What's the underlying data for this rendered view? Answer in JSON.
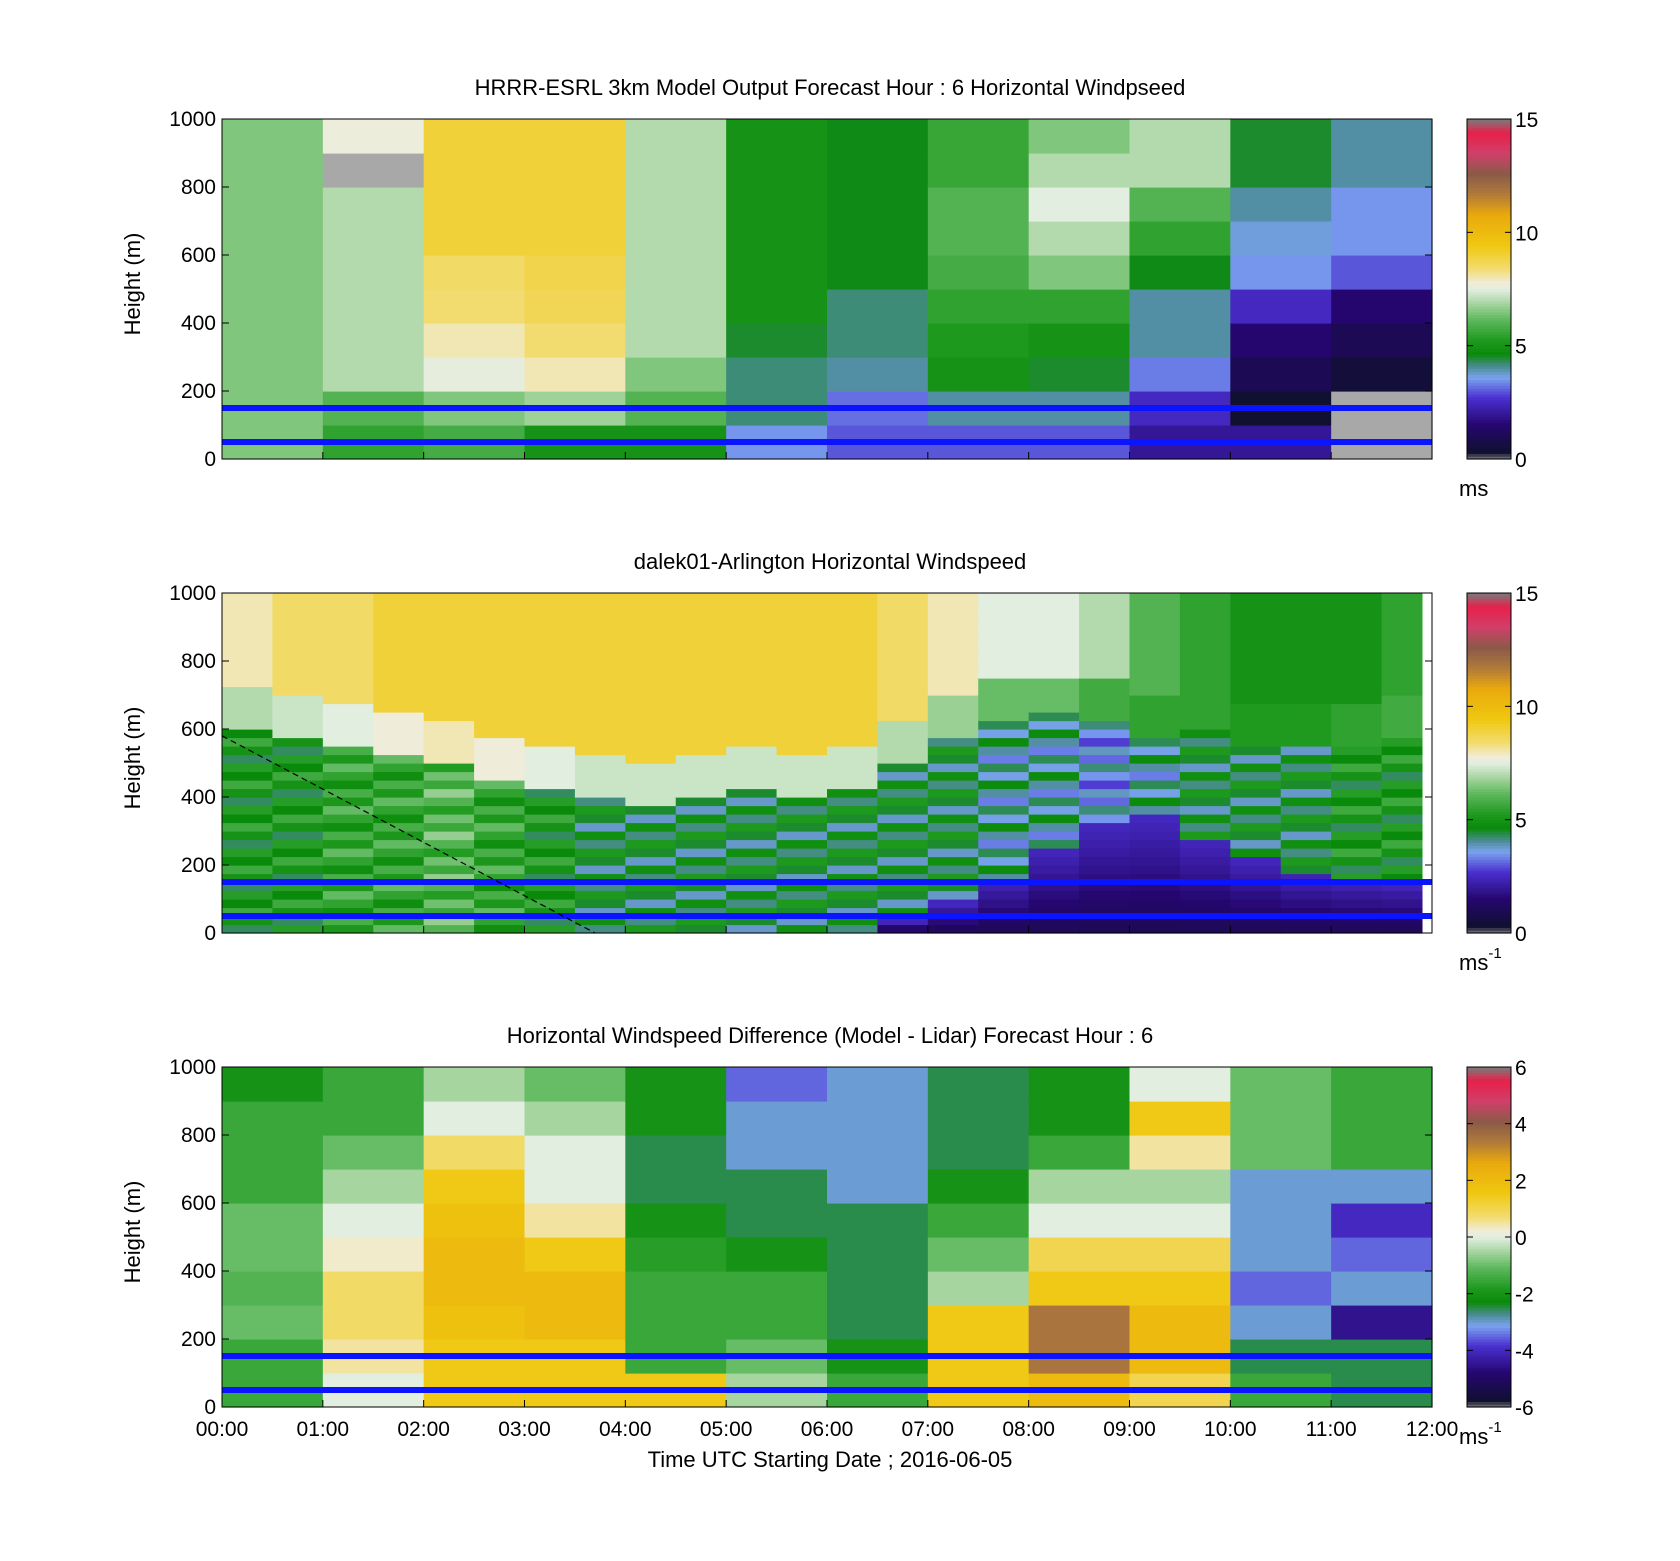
{
  "chart_data": [
    {
      "type": "heatmap",
      "title": "HRRR-ESRL 3km Model Output   Forecast Hour : 6 Horizontal Windpseed",
      "ylabel": "Height (m)",
      "xlabel": "",
      "ylim": [
        0,
        1000
      ],
      "yticks": [
        0,
        200,
        400,
        600,
        800,
        1000
      ],
      "x_tick_labels": [
        "",
        "",
        "",
        "",
        "",
        "",
        "",
        "",
        "",
        "",
        "",
        "",
        ""
      ],
      "x_hours": [
        0,
        12
      ],
      "colorbar": {
        "range": [
          0,
          15
        ],
        "ticks": [
          0,
          5,
          10,
          15
        ],
        "unit": "ms",
        "unit_sup": ""
      },
      "reference_lines_m": [
        50,
        150
      ],
      "columns_hours": [
        0,
        1,
        2,
        3,
        4,
        5,
        6,
        7,
        8,
        9,
        10,
        11
      ],
      "values": [
        [
          6.5,
          6.5,
          6.5,
          6.5,
          6.5,
          6.5,
          6.5,
          6.5,
          6.5,
          6.5
        ],
        [
          5.5,
          6,
          7,
          7,
          7,
          7,
          7,
          7,
          -1,
          7.7
        ],
        [
          5.8,
          6.5,
          7.6,
          8,
          8.4,
          8.5,
          9,
          9,
          9,
          9
        ],
        [
          5,
          6.8,
          8,
          8.4,
          8.7,
          8.8,
          9,
          9,
          9,
          9
        ],
        [
          5,
          6,
          6.5,
          7,
          7,
          7,
          7,
          7,
          7,
          7
        ],
        [
          3.5,
          4.2,
          4.2,
          4.5,
          5,
          5,
          5,
          5,
          5,
          5
        ],
        [
          3,
          3.2,
          4,
          4.2,
          4.2,
          4.6,
          4.6,
          4.6,
          4.6,
          4.6
        ],
        [
          3,
          4,
          5,
          5.2,
          5.5,
          5.8,
          6,
          6,
          5.6,
          5.6
        ],
        [
          3,
          4,
          4.5,
          5,
          5.5,
          6.5,
          7,
          7.5,
          7,
          6.5
        ],
        [
          2,
          2.5,
          3.3,
          4,
          4,
          4.6,
          5.5,
          6,
          7,
          7
        ],
        [
          2,
          0.3,
          1,
          1.5,
          2.5,
          3.5,
          3.7,
          4,
          4.5,
          4.5
        ],
        [
          -1,
          -1,
          0.5,
          1,
          1.5,
          3,
          3.5,
          3.5,
          4,
          4
        ]
      ]
    },
    {
      "type": "heatmap",
      "title": "dalek01-Arlington  Horizontal Windspeed",
      "ylabel": "Height (m)",
      "xlabel": "",
      "ylim": [
        0,
        1000
      ],
      "yticks": [
        0,
        200,
        400,
        600,
        800,
        1000
      ],
      "x_tick_labels": [
        "",
        "",
        "",
        "",
        "",
        "",
        "",
        "",
        "",
        "",
        "",
        "",
        ""
      ],
      "x_hours": [
        0,
        12
      ],
      "colorbar": {
        "range": [
          0,
          15
        ],
        "ticks": [
          0,
          5,
          10,
          15
        ],
        "unit": "ms",
        "unit_sup": "-1"
      },
      "reference_lines_m": [
        50,
        150
      ],
      "dashed_line": [
        [
          0,
          580
        ],
        [
          3.7,
          0
        ]
      ],
      "columns_hours": [
        0,
        0.5,
        1,
        1.5,
        2,
        2.5,
        3,
        3.5,
        4,
        4.5,
        5,
        5.5,
        6,
        6.5,
        7,
        7.5,
        8,
        8.5,
        9,
        9.5,
        10,
        10.5,
        11,
        11.5
      ],
      "boundary_m": [
        660,
        640,
        620,
        580,
        560,
        520,
        480,
        460,
        440,
        460,
        480,
        470,
        480,
        560,
        640,
        690,
        700,
        680,
        640,
        650,
        620,
        620,
        610,
        630
      ],
      "low_core_m": [
        0,
        0,
        0,
        0,
        0,
        0,
        0,
        0,
        0,
        0,
        0,
        0,
        0,
        40,
        90,
        160,
        250,
        320,
        340,
        280,
        220,
        180,
        160,
        150
      ],
      "lower_layer_speed": [
        5,
        5,
        5.5,
        5.5,
        6,
        5.5,
        5,
        4.5,
        4.5,
        4.5,
        4.5,
        4.5,
        4.5,
        4.5,
        4.5,
        4,
        4,
        3.5,
        4,
        4.5,
        4.5,
        4.5,
        5,
        5
      ],
      "upper_layer_speed": [
        8,
        8.5,
        8.5,
        9,
        9,
        9,
        9,
        9,
        9,
        9,
        9,
        9,
        9,
        8.5,
        8,
        7.5,
        7.5,
        7,
        6,
        5.5,
        5,
        5,
        5,
        5.5
      ]
    },
    {
      "type": "heatmap",
      "title": "Horizontal Windspeed Difference (Model - Lidar) Forecast Hour : 6",
      "ylabel": "Height (m)",
      "xlabel": "Time UTC  Starting Date ; 2016-06-05",
      "ylim": [
        0,
        1000
      ],
      "yticks": [
        0,
        200,
        400,
        600,
        800,
        1000
      ],
      "x_tick_labels": [
        "00:00",
        "01:00",
        "02:00",
        "03:00",
        "04:00",
        "05:00",
        "06:00",
        "07:00",
        "08:00",
        "09:00",
        "10:00",
        "11:00",
        "12:00"
      ],
      "x_hours": [
        0,
        12
      ],
      "colorbar": {
        "range": [
          -6,
          6
        ],
        "ticks": [
          -6,
          -4,
          -2,
          0,
          2,
          4,
          6
        ],
        "unit": "ms",
        "unit_sup": "-1"
      },
      "reference_lines_m": [
        50,
        150
      ],
      "columns_hours": [
        0,
        1,
        2,
        3,
        4,
        5,
        6,
        7,
        8,
        9,
        10,
        11
      ],
      "values": [
        [
          -1.5,
          -1.5,
          -1,
          -1.2,
          -1,
          -1,
          -1.5,
          -1.5,
          -1.5,
          -2
        ],
        [
          0,
          0.5,
          0.8,
          0.8,
          0.3,
          0,
          -0.5,
          -1,
          -1.5,
          -1.5
        ],
        [
          1.5,
          1.5,
          1.8,
          2,
          2,
          1.8,
          1.5,
          0.8,
          0,
          -0.5
        ],
        [
          1.5,
          1.5,
          2,
          2,
          1.5,
          0.5,
          0,
          0,
          -0.5,
          -1
        ],
        [
          1.5,
          -1.5,
          -1.5,
          -1.5,
          -1.7,
          -2,
          -2.5,
          -2.5,
          -2,
          -2
        ],
        [
          -0.5,
          -1,
          -1.5,
          -1.5,
          -2,
          -2.5,
          -2.5,
          -3,
          -3,
          -3.5
        ],
        [
          -1.5,
          -2,
          -2.5,
          -2.5,
          -2.5,
          -2.5,
          -3,
          -3,
          -3,
          -3
        ],
        [
          1.5,
          1.5,
          1.5,
          -0.5,
          -1,
          -1.5,
          -2,
          -2.5,
          -2.5,
          -2.5
        ],
        [
          2,
          3.5,
          3.5,
          1.5,
          1,
          0,
          -0.5,
          -1.5,
          -2,
          -2
        ],
        [
          1,
          2,
          2,
          1.5,
          1,
          0,
          -0.5,
          0.5,
          1.5,
          0
        ],
        [
          -1.5,
          -2.5,
          -3,
          -3.5,
          -3,
          -3,
          -3,
          -1,
          -1,
          -1
        ],
        [
          -2.5,
          -2.5,
          -4.5,
          -3,
          -3.5,
          -4,
          -3,
          -1.5,
          -1.5,
          -1.5
        ]
      ]
    }
  ]
}
